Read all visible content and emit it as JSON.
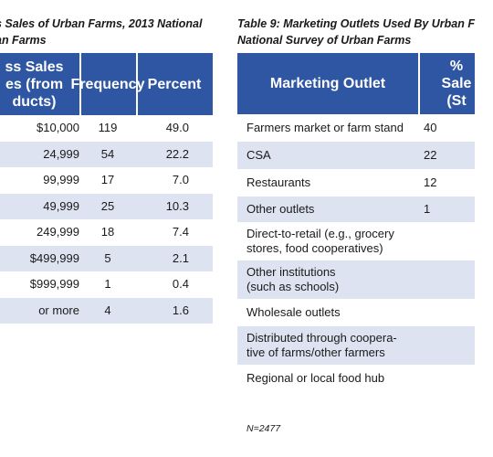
{
  "left_table": {
    "caption": [
      "s Sales of Urban Farms, 2013 National",
      "an Farms"
    ],
    "headers": [
      "ss Sales es (from ducts)",
      "Frequency",
      "Percent"
    ],
    "header_lines": [
      "ss Sales",
      "es (from",
      "ducts)"
    ],
    "rows": [
      {
        "range": "$10,000",
        "frequency": "119",
        "percent": "49.0"
      },
      {
        "range": "24,999",
        "frequency": "54",
        "percent": "22.2"
      },
      {
        "range": "99,999",
        "frequency": "17",
        "percent": "7.0"
      },
      {
        "range": "49,999",
        "frequency": "25",
        "percent": "10.3"
      },
      {
        "range": "249,999",
        "frequency": "18",
        "percent": "7.4"
      },
      {
        "range": "$499,999",
        "frequency": "5",
        "percent": "2.1"
      },
      {
        "range": "$999,999",
        "frequency": "1",
        "percent": "0.4"
      },
      {
        "range": "or more",
        "frequency": "4",
        "percent": "1.6"
      }
    ]
  },
  "right_table": {
    "caption": [
      "Table 9: Marketing Outlets Used By Urban F",
      "National Survey of Urban Farms"
    ],
    "header_outlet": "Marketing Outlet",
    "header_pct_lines": [
      "%",
      "Sale",
      "(St"
    ],
    "rows": [
      {
        "lines": [
          "Farmers market or farm stand"
        ],
        "value": "40"
      },
      {
        "lines": [
          "CSA"
        ],
        "value": "22"
      },
      {
        "lines": [
          "Restaurants"
        ],
        "value": "12"
      },
      {
        "lines": [
          "Other outlets"
        ],
        "value": "1"
      },
      {
        "lines": [
          "Direct-to-retail (e.g., grocery",
          "stores, food cooperatives)"
        ],
        "value": ""
      },
      {
        "lines": [
          "Other institutions",
          "(such as schools)"
        ],
        "value": ""
      },
      {
        "lines": [
          "Wholesale outlets"
        ],
        "value": ""
      },
      {
        "lines": [
          "Distributed through coopera-",
          "tive of farms/other farmers"
        ],
        "value": ""
      },
      {
        "lines": [
          "Regional or local food hub"
        ],
        "value": ""
      }
    ],
    "note": "N=2477"
  }
}
